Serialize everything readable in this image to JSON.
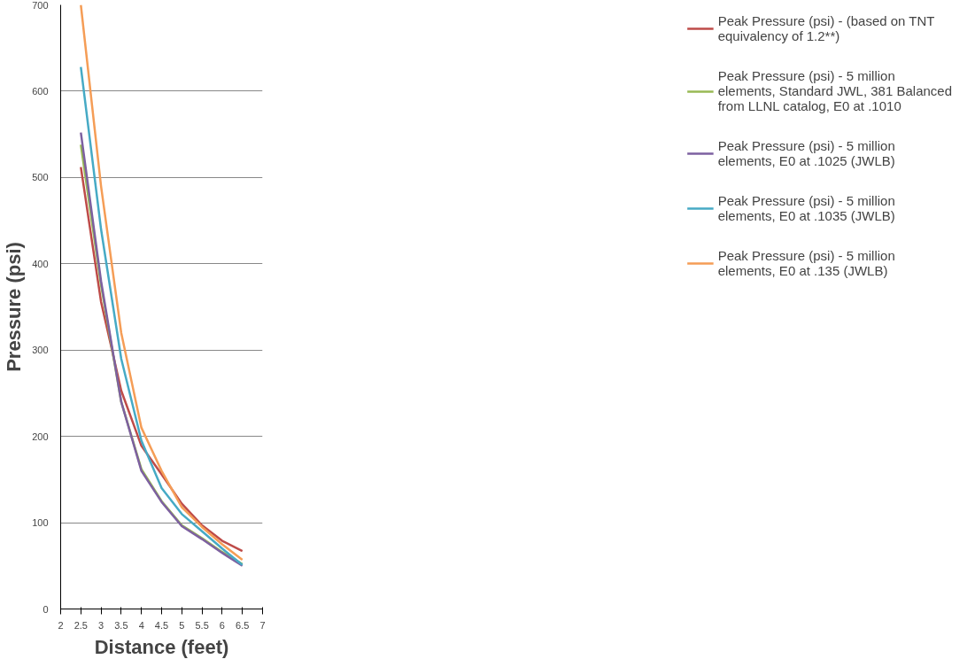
{
  "chart_data": {
    "type": "line",
    "xlabel": "Distance (feet)",
    "ylabel": "Pressure (psi)",
    "x": [
      2.5,
      3,
      3.5,
      4,
      4.5,
      5,
      5.5,
      6,
      6.5
    ],
    "xlim": [
      2,
      7
    ],
    "xticks": [
      2,
      2.5,
      3,
      3.5,
      4,
      4.5,
      5,
      5.5,
      6,
      6.5,
      7
    ],
    "ylim": [
      0,
      700
    ],
    "yticks": [
      0,
      100,
      200,
      300,
      400,
      500,
      600,
      700
    ],
    "grid": "y",
    "legend": "right",
    "marker": "none",
    "line_style": "solid",
    "series": [
      {
        "name": "Peak Pressure (psi) - (based on TNT equivalency of 1.2**)",
        "color": "#be4b48",
        "values": [
          512,
          356,
          253,
          189,
          156,
          122,
          97,
          79,
          67
        ]
      },
      {
        "name": "Peak Pressure (psi) - 5 million elements, Standard JWL, 381 Balanced from LLNL catalog, E0 at .1010",
        "color": "#98b954",
        "values": [
          538,
          375,
          240,
          162,
          125,
          97,
          82,
          66,
          52
        ]
      },
      {
        "name": "Peak Pressure (psi) - 5 million elements, E0 at .1025 (JWLB)",
        "color": "#7d60a0",
        "values": [
          552,
          380,
          240,
          160,
          124,
          96,
          81,
          65,
          50
        ]
      },
      {
        "name": "Peak Pressure (psi) - 5 million elements, E0 at .1035 (JWLB)",
        "color": "#46aac5",
        "values": [
          628,
          440,
          290,
          195,
          140,
          110,
          90,
          70,
          51
        ]
      },
      {
        "name": "Peak Pressure (psi) - 5 million elements, E0 at .135 (JWLB)",
        "color": "#f59d56",
        "values": [
          700,
          490,
          320,
          210,
          160,
          118,
          95,
          75,
          57
        ]
      }
    ]
  }
}
